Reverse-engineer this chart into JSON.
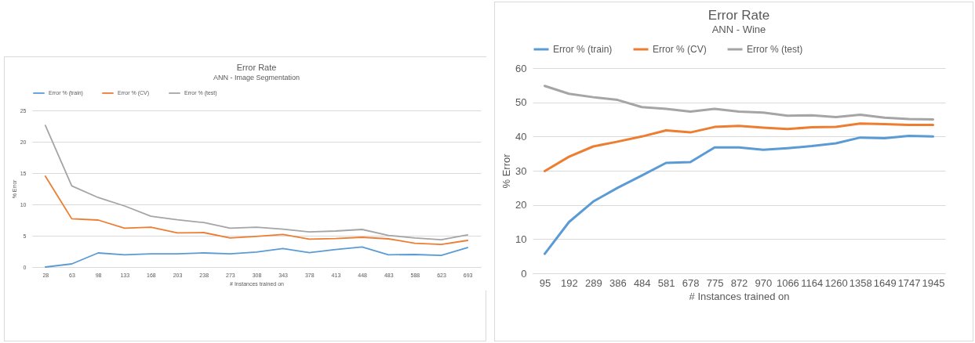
{
  "chart_data": [
    {
      "type": "line",
      "title": "Error Rate",
      "subtitle": "ANN - Image Segmentation",
      "xlabel": "# Instances trained on",
      "ylabel": "% Error",
      "categories": [
        "28",
        "63",
        "98",
        "133",
        "168",
        "203",
        "238",
        "273",
        "308",
        "343",
        "378",
        "413",
        "448",
        "483",
        "588",
        "623",
        "693"
      ],
      "series": [
        {
          "name": "Error % (train)",
          "color": "#5b9bd5",
          "values": [
            0,
            0.5,
            2.25,
            1.95,
            2.1,
            2.1,
            2.25,
            2.1,
            2.4,
            2.95,
            2.3,
            2.8,
            3.2,
            1.95,
            2.0,
            1.85,
            3.1
          ]
        },
        {
          "name": "Error % (CV)",
          "color": "#ed7d31",
          "values": [
            14.5,
            7.7,
            7.5,
            6.2,
            6.35,
            5.45,
            5.5,
            4.65,
            4.9,
            5.2,
            4.45,
            4.55,
            4.75,
            4.5,
            3.8,
            3.6,
            4.25
          ]
        },
        {
          "name": "Error % (test)",
          "color": "#a5a5a5",
          "values": [
            22.6,
            12.95,
            11.1,
            9.75,
            8.1,
            7.55,
            7.1,
            6.2,
            6.35,
            6.05,
            5.6,
            5.75,
            6.0,
            5.05,
            4.65,
            4.35,
            5.15
          ]
        }
      ],
      "ylim": [
        0,
        25
      ],
      "yticks": [
        0,
        5,
        10,
        15,
        20,
        25
      ],
      "grid": "y",
      "legend": "top"
    },
    {
      "type": "line",
      "title": "Error Rate",
      "subtitle": "ANN - Wine",
      "xlabel": "# Instances trained on",
      "ylabel": "% Error",
      "categories": [
        "95",
        "192",
        "289",
        "386",
        "484",
        "581",
        "678",
        "775",
        "872",
        "970",
        "1066",
        "1164",
        "1260",
        "1358",
        "1649",
        "1747",
        "1945"
      ],
      "series": [
        {
          "name": "Error % (train)",
          "color": "#5b9bd5",
          "values": [
            5.7,
            15,
            21,
            25,
            28.6,
            32.3,
            32.5,
            36.8,
            36.8,
            36.1,
            36.6,
            37.2,
            38,
            39.7,
            39.5,
            40.2,
            40.0
          ]
        },
        {
          "name": "Error % (CV)",
          "color": "#ed7d31",
          "values": [
            29.9,
            34.1,
            37.1,
            38.5,
            40,
            41.8,
            41.2,
            42.8,
            43.1,
            42.6,
            42.2,
            42.7,
            42.8,
            43.8,
            43.6,
            43.4,
            43.4
          ]
        },
        {
          "name": "Error % (test)",
          "color": "#a5a5a5",
          "values": [
            54.8,
            52.5,
            51.5,
            50.7,
            48.6,
            48.1,
            47.3,
            48.1,
            47.3,
            47,
            46.1,
            46.2,
            45.7,
            46.4,
            45.5,
            45.1,
            45.0
          ]
        }
      ],
      "ylim": [
        0,
        60
      ],
      "yticks": [
        0,
        10,
        20,
        30,
        40,
        50,
        60
      ],
      "grid": "y",
      "legend": "top"
    }
  ]
}
